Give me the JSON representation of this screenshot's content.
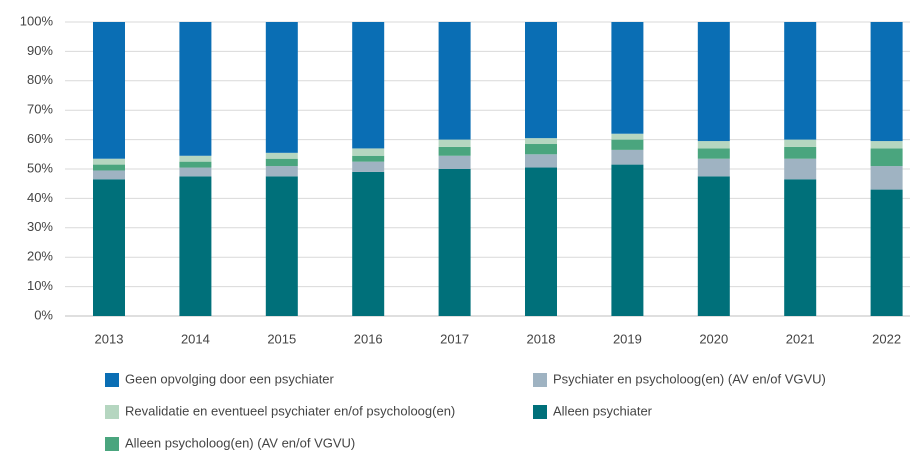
{
  "chart_data": {
    "type": "stacked_bar",
    "categories": [
      "2013",
      "2014",
      "2015",
      "2016",
      "2017",
      "2018",
      "2019",
      "2020",
      "2021",
      "2022"
    ],
    "series": [
      {
        "name": "Alleen psychiater",
        "color": "#00707a",
        "values": [
          46.5,
          47.5,
          47.5,
          49,
          50,
          50.5,
          51.5,
          47.5,
          46.5,
          43
        ]
      },
      {
        "name": "Psychiater en psycholoog(en) (AV en/of VGVU)",
        "color": "#9fb3c2",
        "values": [
          3,
          3,
          3.5,
          3.5,
          4.5,
          4.5,
          5,
          6,
          7,
          8
        ]
      },
      {
        "name": "Alleen psycholoog(en) (AV en/of VGVU)",
        "color": "#4aa57e",
        "values": [
          2,
          2,
          2.5,
          2,
          3,
          3.5,
          3.5,
          3.5,
          4,
          6
        ]
      },
      {
        "name": "Revalidatie en eventueel psychiater en/of psycholoog(en)",
        "color": "#b5d6c0",
        "values": [
          2,
          2,
          2,
          2.5,
          2.5,
          2,
          2,
          2.5,
          2.5,
          2.5
        ]
      },
      {
        "name": "Geen opvolging door een psychiater",
        "color": "#0a6eb4",
        "values": [
          46.5,
          45.5,
          44.5,
          43,
          40,
          39.5,
          38,
          40.5,
          40,
          40.5
        ]
      }
    ],
    "ylim": [
      0,
      100
    ],
    "yticks": [
      {
        "value": 0,
        "label": "0%"
      },
      {
        "value": 10,
        "label": "10%"
      },
      {
        "value": 20,
        "label": "20%"
      },
      {
        "value": 30,
        "label": "30%"
      },
      {
        "value": 40,
        "label": "40%"
      },
      {
        "value": 50,
        "label": "50%"
      },
      {
        "value": 60,
        "label": "60%"
      },
      {
        "value": 70,
        "label": "70%"
      },
      {
        "value": 80,
        "label": "80%"
      },
      {
        "value": 90,
        "label": "90%"
      },
      {
        "value": 100,
        "label": "100%"
      }
    ],
    "grid": true
  }
}
